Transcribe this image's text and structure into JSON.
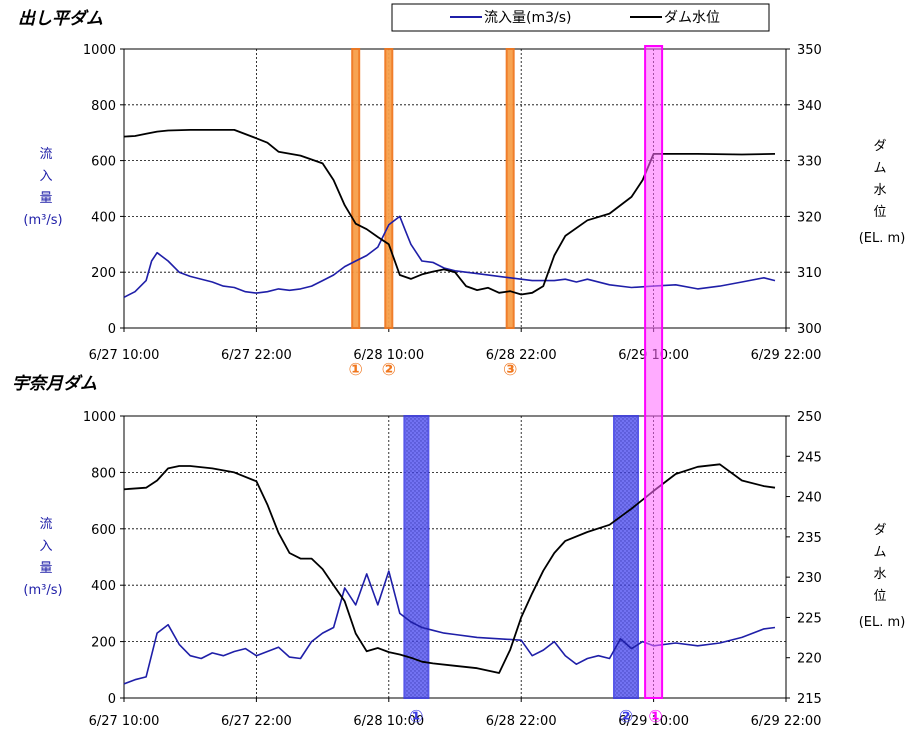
{
  "legend": {
    "inflow_label": "流入量(m3/s)",
    "level_label": "ダム水位",
    "inflow_color": "#1f1fa8",
    "level_color": "#000000"
  },
  "chart_data": [
    {
      "type": "line",
      "title": "出し平ダム",
      "ylabel_left": [
        "流",
        "入",
        "量",
        "(m³/s)"
      ],
      "ylabel_right": [
        "ダ",
        "ム",
        "水",
        "位",
        "(EL. m)"
      ],
      "xlim": [
        "6/27 10:00",
        "6/29 22:00"
      ],
      "xticks": [
        "6/27 10:00",
        "6/27 22:00",
        "6/28 10:00",
        "6/28 22:00",
        "6/29 10:00",
        "6/29 22:00"
      ],
      "ylim_left": [
        0,
        1000
      ],
      "yticks_left": [
        0,
        200,
        400,
        600,
        800,
        1000
      ],
      "ylim_right": [
        300,
        350
      ],
      "yticks_right": [
        300,
        310,
        320,
        330,
        340,
        350
      ],
      "grid": true,
      "series": [
        {
          "name": "流入量(m3/s)",
          "axis": "left",
          "color": "#1f1fa8",
          "x": [
            "6/27 10:00",
            "6/27 11:00",
            "6/27 12:00",
            "6/27 12:30",
            "6/27 13:00",
            "6/27 14:00",
            "6/27 15:00",
            "6/27 16:00",
            "6/27 18:00",
            "6/27 19:00",
            "6/27 20:00",
            "6/27 21:00",
            "6/27 22:00",
            "6/27 23:00",
            "6/28 00:00",
            "6/28 01:00",
            "6/28 02:00",
            "6/28 03:00",
            "6/28 04:00",
            "6/28 05:00",
            "6/28 06:00",
            "6/28 07:00",
            "6/28 08:00",
            "6/28 09:00",
            "6/28 10:00",
            "6/28 11:00",
            "6/28 11:30",
            "6/28 12:00",
            "6/28 13:00",
            "6/28 14:00",
            "6/28 15:00",
            "6/28 16:00",
            "6/28 18:00",
            "6/28 20:00",
            "6/28 21:00",
            "6/28 22:00",
            "6/28 23:00",
            "6/29 00:00",
            "6/29 01:00",
            "6/29 02:00",
            "6/29 03:00",
            "6/29 04:00",
            "6/29 06:00",
            "6/29 08:00",
            "6/29 10:00",
            "6/29 12:00",
            "6/29 14:00",
            "6/29 16:00",
            "6/29 18:00",
            "6/29 20:00",
            "6/29 21:00"
          ],
          "values": [
            110,
            130,
            170,
            240,
            270,
            240,
            200,
            185,
            165,
            150,
            145,
            130,
            125,
            130,
            140,
            135,
            140,
            150,
            170,
            190,
            220,
            240,
            260,
            290,
            370,
            400,
            350,
            300,
            240,
            235,
            215,
            205,
            195,
            185,
            180,
            175,
            170,
            170,
            170,
            175,
            165,
            175,
            155,
            145,
            150,
            155,
            140,
            150,
            165,
            180,
            170
          ]
        },
        {
          "name": "ダム水位",
          "axis": "right",
          "color": "#000000",
          "x": [
            "6/27 10:00",
            "6/27 11:00",
            "6/27 12:00",
            "6/27 13:00",
            "6/27 14:00",
            "6/27 16:00",
            "6/27 18:00",
            "6/27 20:00",
            "6/27 22:00",
            "6/27 23:00",
            "6/28 00:00",
            "6/28 02:00",
            "6/28 04:00",
            "6/28 05:00",
            "6/28 06:00",
            "6/28 07:00",
            "6/28 08:00",
            "6/28 09:00",
            "6/28 10:00",
            "6/28 11:00",
            "6/28 12:00",
            "6/28 13:00",
            "6/28 14:00",
            "6/28 15:00",
            "6/28 16:00",
            "6/28 17:00",
            "6/28 18:00",
            "6/28 19:00",
            "6/28 20:00",
            "6/28 21:00",
            "6/28 22:00",
            "6/28 23:00",
            "6/29 00:00",
            "6/29 01:00",
            "6/29 02:00",
            "6/29 04:00",
            "6/29 06:00",
            "6/29 08:00",
            "6/29 09:00",
            "6/29 10:00",
            "6/29 14:00",
            "6/29 18:00",
            "6/29 21:00"
          ],
          "values": [
            334.3,
            334.4,
            334.8,
            335.2,
            335.4,
            335.5,
            335.5,
            335.5,
            334.0,
            333.2,
            331.6,
            330.9,
            329.5,
            326.5,
            322.0,
            318.7,
            317.7,
            316.3,
            315.0,
            309.5,
            308.8,
            309.6,
            310.1,
            310.5,
            310.0,
            307.5,
            306.8,
            307.2,
            306.3,
            306.6,
            306.0,
            306.3,
            307.5,
            313.0,
            316.5,
            319.3,
            320.5,
            323.5,
            326.5,
            331.2,
            331.2,
            331.1,
            331.2
          ]
        }
      ],
      "markers": [
        {
          "label": "①",
          "x": "6/28 07:00",
          "color": "#f07820"
        },
        {
          "label": "②",
          "x": "6/28 10:00",
          "color": "#f07820"
        },
        {
          "label": "③",
          "x": "6/28 21:00",
          "color": "#f07820"
        }
      ]
    },
    {
      "type": "line",
      "title": "宇奈月ダム",
      "ylabel_left": [
        "流",
        "入",
        "量",
        "(m³/s)"
      ],
      "ylabel_right": [
        "ダ",
        "ム",
        "水",
        "位",
        "(EL. m)"
      ],
      "xlim": [
        "6/27 10:00",
        "6/29 22:00"
      ],
      "xticks": [
        "6/27 10:00",
        "6/27 22:00",
        "6/28 10:00",
        "6/28 22:00",
        "6/29 10:00",
        "6/29 22:00"
      ],
      "ylim_left": [
        0,
        1000
      ],
      "yticks_left": [
        0,
        200,
        400,
        600,
        800,
        1000
      ],
      "ylim_right": [
        215,
        250
      ],
      "yticks_right": [
        215,
        220,
        225,
        230,
        235,
        240,
        245,
        250
      ],
      "grid": true,
      "series": [
        {
          "name": "流入量(m3/s)",
          "axis": "left",
          "color": "#1f1fa8",
          "x": [
            "6/27 10:00",
            "6/27 11:00",
            "6/27 12:00",
            "6/27 13:00",
            "6/27 14:00",
            "6/27 15:00",
            "6/27 16:00",
            "6/27 17:00",
            "6/27 18:00",
            "6/27 19:00",
            "6/27 20:00",
            "6/27 21:00",
            "6/27 22:00",
            "6/27 23:00",
            "6/28 00:00",
            "6/28 01:00",
            "6/28 02:00",
            "6/28 03:00",
            "6/28 04:00",
            "6/28 05:00",
            "6/28 06:00",
            "6/28 07:00",
            "6/28 08:00",
            "6/28 09:00",
            "6/28 10:00",
            "6/28 11:00",
            "6/28 12:00",
            "6/28 13:00",
            "6/28 14:00",
            "6/28 15:00",
            "6/28 16:00",
            "6/28 18:00",
            "6/28 20:00",
            "6/28 22:00",
            "6/28 23:00",
            "6/29 00:00",
            "6/29 01:00",
            "6/29 02:00",
            "6/29 03:00",
            "6/29 04:00",
            "6/29 05:00",
            "6/29 06:00",
            "6/29 07:00",
            "6/29 08:00",
            "6/29 09:00",
            "6/29 10:00",
            "6/29 12:00",
            "6/29 14:00",
            "6/29 16:00",
            "6/29 18:00",
            "6/29 20:00",
            "6/29 21:00"
          ],
          "values": [
            50,
            65,
            75,
            230,
            260,
            190,
            150,
            140,
            160,
            150,
            165,
            175,
            150,
            165,
            180,
            145,
            140,
            200,
            230,
            250,
            390,
            330,
            440,
            330,
            450,
            300,
            270,
            250,
            240,
            230,
            225,
            215,
            210,
            205,
            150,
            170,
            200,
            150,
            120,
            140,
            150,
            140,
            210,
            175,
            200,
            185,
            195,
            185,
            195,
            215,
            245,
            250
          ]
        },
        {
          "name": "ダム水位",
          "axis": "right",
          "color": "#000000",
          "x": [
            "6/27 10:00",
            "6/27 12:00",
            "6/27 13:00",
            "6/27 14:00",
            "6/27 15:00",
            "6/27 16:00",
            "6/27 18:00",
            "6/27 20:00",
            "6/27 22:00",
            "6/27 23:00",
            "6/28 00:00",
            "6/28 01:00",
            "6/28 02:00",
            "6/28 03:00",
            "6/28 04:00",
            "6/28 05:00",
            "6/28 06:00",
            "6/28 07:00",
            "6/28 08:00",
            "6/28 09:00",
            "6/28 10:00",
            "6/28 11:00",
            "6/28 12:00",
            "6/28 13:00",
            "6/28 14:00",
            "6/28 16:00",
            "6/28 18:00",
            "6/28 20:00",
            "6/28 21:00",
            "6/28 22:00",
            "6/28 23:00",
            "6/29 00:00",
            "6/29 01:00",
            "6/29 02:00",
            "6/29 04:00",
            "6/29 06:00",
            "6/29 08:00",
            "6/29 10:00",
            "6/29 12:00",
            "6/29 14:00",
            "6/29 16:00",
            "6/29 18:00",
            "6/29 20:00",
            "6/29 21:00"
          ],
          "values": [
            240.9,
            241.1,
            242.0,
            243.5,
            243.8,
            243.8,
            243.5,
            243.0,
            241.9,
            239.0,
            235.5,
            233.0,
            232.3,
            232.3,
            231.0,
            229.0,
            227.0,
            223.0,
            220.8,
            221.2,
            220.7,
            220.4,
            220.0,
            219.5,
            219.3,
            219.0,
            218.7,
            218.1,
            221.0,
            225.0,
            228.0,
            230.8,
            233.0,
            234.5,
            235.6,
            236.5,
            238.5,
            240.7,
            242.8,
            243.7,
            244.0,
            242.0,
            241.3,
            241.1
          ]
        }
      ],
      "markers": [
        {
          "label": "①",
          "x": "6/28 12:30",
          "color": "#3c3ce6"
        },
        {
          "label": "②",
          "x": "6/29 07:30",
          "color": "#3c3ce6"
        }
      ]
    }
  ],
  "overlay_marker": {
    "label": "①",
    "x": "6/29 10:00",
    "color": "#ff00ff"
  }
}
